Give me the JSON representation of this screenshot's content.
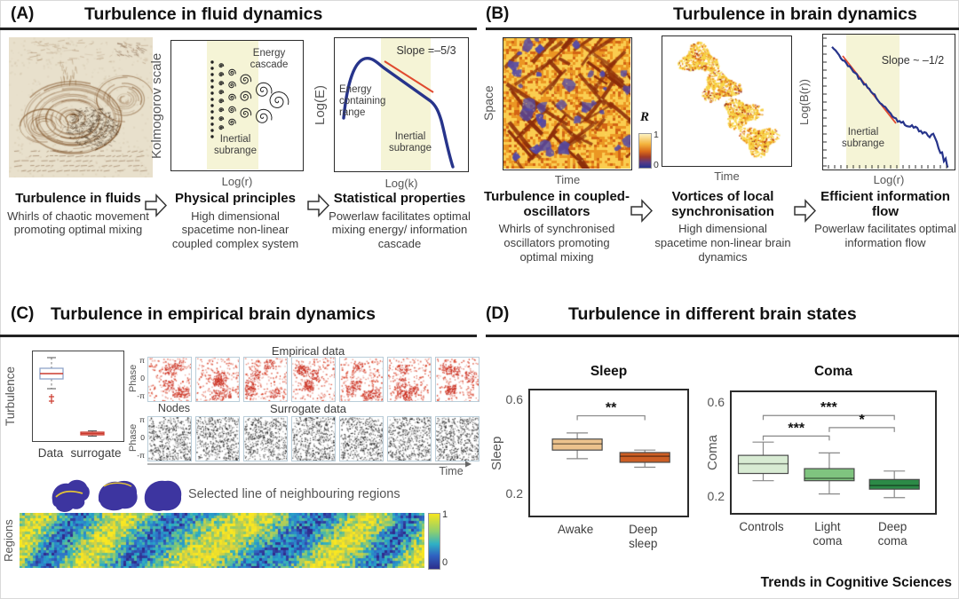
{
  "journal": "Trends in Cognitive Sciences",
  "panel_a": {
    "tag": "(A)",
    "title": "Turbulence in fluid dynamics",
    "cascade": {
      "ylabel": "Kolmogorov scale",
      "xlabel": "Log(r)",
      "label_top": "Energy cascade",
      "label_bottom": "Inertial subrange"
    },
    "spectrum": {
      "ylabel": "Log(E)",
      "xlabel": "Log(k)",
      "slope_label": "Slope =–5/3",
      "label_left": "Energy containing range",
      "label_bottom": "Inertial subrange"
    },
    "steps": [
      {
        "title": "Turbulence in fluids",
        "desc": "Whirls of chaotic movement promoting optimal mixing"
      },
      {
        "title": "Physical principles",
        "desc": "High dimensional spacetime non-linear coupled complex system"
      },
      {
        "title": "Statistical properties",
        "desc": "Powerlaw facilitates optimal mixing energy/ information cascade"
      }
    ]
  },
  "panel_b": {
    "tag": "(B)",
    "title": "Turbulence in brain dynamics",
    "spacetime": {
      "ylabel": "Space",
      "xlabel": "Time",
      "colorbar_label": "R",
      "colorbar_top": "1",
      "colorbar_bottom": "0"
    },
    "vortices": {
      "xlabel": "Time"
    },
    "spectrum": {
      "ylabel": "Log(B(r))",
      "xlabel": "Log(r)",
      "slope_label": "Slope ~ –1/2",
      "label_bottom": "Inertial subrange"
    },
    "steps": [
      {
        "title": "Turbulence in coupled-oscillators",
        "desc": "Whirls of synchronised oscillators promoting optimal mixing"
      },
      {
        "title": "Vortices of local synchronisation",
        "desc": "High dimensional spacetime non-linear brain dynamics"
      },
      {
        "title": "Efficient information flow",
        "desc": "Powerlaw facilitates optimal information flow"
      }
    ]
  },
  "panel_c": {
    "tag": "(C)",
    "title": "Turbulence in empirical brain dynamics",
    "boxplot": {
      "ylabel": "Turbulence",
      "categories": [
        "Data",
        "surrogate"
      ]
    },
    "raster": {
      "empirical_title": "Empirical data",
      "surrogate_title": "Surrogate data",
      "phase_label": "Phase",
      "yticks": [
        "π",
        "0",
        "-π"
      ],
      "nodes_label": "Nodes",
      "time_label": "Time",
      "panels_per_row": 7
    },
    "selected_label": "Selected line of neighbouring regions",
    "heatmap": {
      "ylabel": "Regions",
      "colorbar_top": "1",
      "colorbar_bottom": "0"
    }
  },
  "panel_d": {
    "tag": "(D)",
    "title": "Turbulence in different brain states"
  },
  "chart_data": [
    {
      "id": "turbulence_data_vs_surrogate",
      "type": "box",
      "ylabel": "Turbulence",
      "categories": [
        "Data",
        "surrogate"
      ],
      "note": "y-axis unlabeled; box values given as fraction of axis height",
      "boxes": [
        {
          "lo": 0.58,
          "q1": 0.69,
          "med": 0.75,
          "q3": 0.81,
          "hi": 0.93,
          "outliers": [
            0.49,
            0.44
          ],
          "stroke": "#8fa3c8",
          "median": "#cc3b2e"
        },
        {
          "lo": 0.045,
          "q1": 0.06,
          "med": 0.075,
          "q3": 0.09,
          "hi": 0.105,
          "outliers": [],
          "stroke": "#cc3b2e",
          "median": "#cc3b2e"
        }
      ]
    },
    {
      "id": "sleep",
      "type": "box",
      "title": "Sleep",
      "ylabel": "Sleep",
      "yticks": [
        "0.6",
        "0.2"
      ],
      "categories": [
        "Awake",
        "Deep sleep"
      ],
      "boxes": [
        {
          "lo": 0.365,
          "q1": 0.4,
          "med": 0.425,
          "q3": 0.445,
          "hi": 0.47
        },
        {
          "lo": 0.33,
          "q1": 0.35,
          "med": 0.375,
          "q3": 0.39,
          "hi": 0.4
        }
      ],
      "colors": [
        "#ecc28d",
        "#cd5e24"
      ],
      "significance": [
        {
          "a": 0,
          "b": 1,
          "label": "**",
          "y": 0.54
        }
      ]
    },
    {
      "id": "coma",
      "type": "box",
      "title": "Coma",
      "ylabel": "Coma",
      "yticks": [
        "0.6",
        "0.2"
      ],
      "categories": [
        "Controls",
        "Light coma",
        "Deep coma"
      ],
      "boxes": [
        {
          "lo": 0.28,
          "q1": 0.31,
          "med": 0.35,
          "q3": 0.385,
          "hi": 0.44
        },
        {
          "lo": 0.225,
          "q1": 0.28,
          "med": 0.29,
          "q3": 0.33,
          "hi": 0.395
        },
        {
          "lo": 0.21,
          "q1": 0.245,
          "med": 0.26,
          "q3": 0.285,
          "hi": 0.32
        }
      ],
      "colors": [
        "#d8ebd3",
        "#7fc47f",
        "#2c8a47"
      ],
      "significance": [
        {
          "a": 0,
          "b": 2,
          "label": "***",
          "y": 0.55
        },
        {
          "a": 1,
          "b": 2,
          "label": "*",
          "y": 0.5
        },
        {
          "a": 0,
          "b": 1,
          "label": "***",
          "y": 0.465
        }
      ]
    }
  ]
}
